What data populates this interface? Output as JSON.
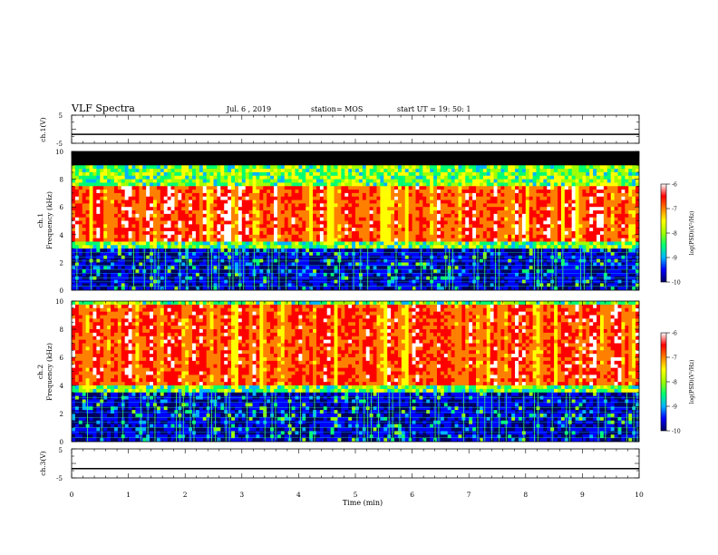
{
  "header": {
    "title": "VLF Spectra",
    "date": "Jul. 6 , 2019",
    "station": "station= MOS",
    "start": "start UT = 19: 50: 1"
  },
  "colors": {
    "colormap": [
      "#000060",
      "#0000ff",
      "#00b4ff",
      "#00ff70",
      "#a0ff00",
      "#ffff00",
      "#ff8000",
      "#ff0000",
      "#ffffff"
    ],
    "background": "#000000",
    "trace": "#000000"
  },
  "chart_data": [
    {
      "type": "line",
      "name": "ch1-waveform",
      "ylabel": "ch.1(V)",
      "ylim": [
        -5,
        5
      ],
      "y_ticks": [
        "5",
        "-5"
      ],
      "y_value": -1.8
    },
    {
      "type": "heatmap",
      "name": "ch1-spectrogram",
      "ylabel": "Frequency (kHz)",
      "channel_label": "ch.1",
      "ylim": [
        0,
        10
      ],
      "xlim": [
        0,
        10
      ],
      "y_ticks": [
        "0",
        "2",
        "4",
        "6",
        "8",
        "10"
      ],
      "colorbar": {
        "label": "log(PSD)(V²/Hz)",
        "ticks": [
          "-6",
          "-7",
          "-8",
          "-9",
          "-10"
        ],
        "range": [
          -10,
          -6
        ]
      },
      "bands_khz": {
        "black_above": 9.0,
        "saturated_top": 7.5,
        "saturated_bottom": 3.5,
        "noise_floor_top": 3.0
      }
    },
    {
      "type": "heatmap",
      "name": "ch2-spectrogram",
      "ylabel": "Frequency (kHz)",
      "channel_label": "ch.2",
      "ylim": [
        0,
        10
      ],
      "xlim": [
        0,
        10
      ],
      "y_ticks": [
        "0",
        "2",
        "4",
        "6",
        "8",
        "10"
      ],
      "colorbar": {
        "label": "log(PSD)(V²/Hz)",
        "ticks": [
          "-6",
          "-7",
          "-8",
          "-9",
          "-10"
        ],
        "range": [
          -10,
          -6
        ]
      },
      "bands_khz": {
        "black_above": 10.0,
        "saturated_top": 9.8,
        "saturated_bottom": 4.0,
        "noise_floor_top": 3.5
      }
    },
    {
      "type": "line",
      "name": "ch3-waveform",
      "ylabel": "ch.3(V)",
      "ylim": [
        -5,
        5
      ],
      "y_ticks": [
        "5",
        "-5"
      ],
      "y_value": -1.8
    }
  ],
  "x_axis": {
    "label": "Time (min)",
    "ticks": [
      "0",
      "1",
      "2",
      "3",
      "4",
      "5",
      "6",
      "7",
      "8",
      "9",
      "10"
    ],
    "range": [
      0,
      10
    ]
  }
}
